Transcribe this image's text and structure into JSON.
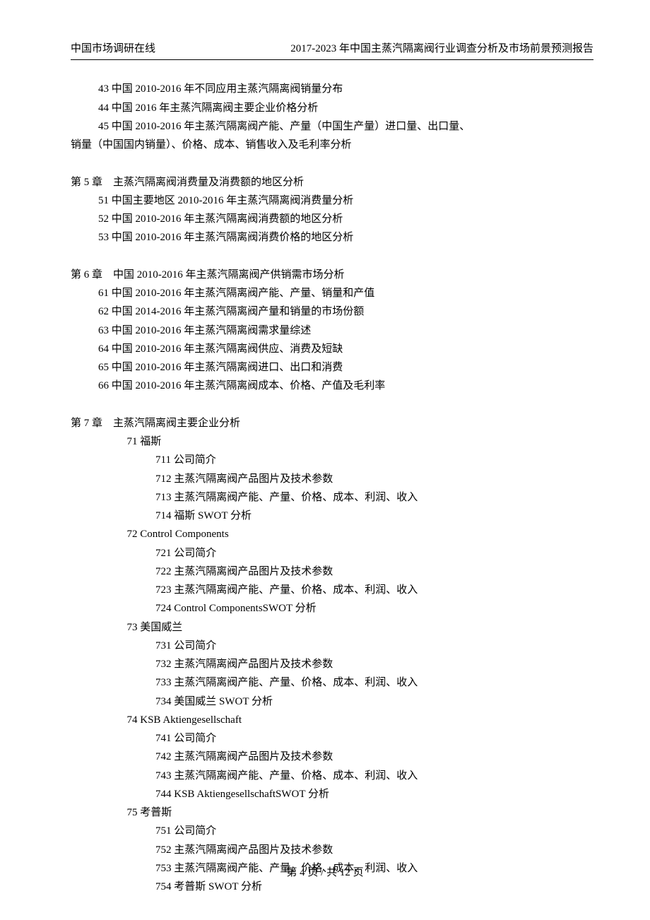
{
  "header": {
    "left": "中国市场调研在线",
    "right": "2017-2023 年中国主蒸汽隔离阀行业调查分析及市场前景预测报告"
  },
  "pre": {
    "l1": "43 中国 2010-2016 年不同应用主蒸汽隔离阀销量分布",
    "l2": "44 中国 2016 年主蒸汽隔离阀主要企业价格分析",
    "l3": "45 中国 2010-2016 年主蒸汽隔离阀产能、产量（中国生产量）进口量、出口量、",
    "l3b": "销量（中国国内销量）、价格、成本、销售收入及毛利率分析"
  },
  "ch5": {
    "title": "第 5 章    主蒸汽隔离阀消费量及消费额的地区分析",
    "s1": "51 中国主要地区 2010-2016 年主蒸汽隔离阀消费量分析",
    "s2": "52 中国 2010-2016 年主蒸汽隔离阀消费额的地区分析",
    "s3": "53 中国 2010-2016 年主蒸汽隔离阀消费价格的地区分析"
  },
  "ch6": {
    "title": "第 6 章    中国 2010-2016 年主蒸汽隔离阀产供销需市场分析",
    "s1": "61 中国 2010-2016 年主蒸汽隔离阀产能、产量、销量和产值",
    "s2": "62 中国 2014-2016 年主蒸汽隔离阀产量和销量的市场份额",
    "s3": "63 中国 2010-2016 年主蒸汽隔离阀需求量综述",
    "s4": "64 中国 2010-2016 年主蒸汽隔离阀供应、消费及短缺",
    "s5": "65 中国 2010-2016 年主蒸汽隔离阀进口、出口和消费",
    "s6": "66 中国 2010-2016 年主蒸汽隔离阀成本、价格、产值及毛利率"
  },
  "ch7": {
    "title": "第 7 章    主蒸汽隔离阀主要企业分析",
    "s71": {
      "h": "71 福斯",
      "a": "711 公司简介",
      "b": "712 主蒸汽隔离阀产品图片及技术参数",
      "c": "713 主蒸汽隔离阀产能、产量、价格、成本、利润、收入",
      "d": "714 福斯 SWOT 分析"
    },
    "s72": {
      "h": "72 Control Components",
      "a": "721 公司简介",
      "b": "722 主蒸汽隔离阀产品图片及技术参数",
      "c": "723 主蒸汽隔离阀产能、产量、价格、成本、利润、收入",
      "d": "724 Control ComponentsSWOT 分析"
    },
    "s73": {
      "h": "73 美国威兰",
      "a": "731 公司简介",
      "b": "732 主蒸汽隔离阀产品图片及技术参数",
      "c": "733 主蒸汽隔离阀产能、产量、价格、成本、利润、收入",
      "d": "734 美国威兰 SWOT 分析"
    },
    "s74": {
      "h": "74 KSB Aktiengesellschaft",
      "a": "741 公司简介",
      "b": "742 主蒸汽隔离阀产品图片及技术参数",
      "c": "743 主蒸汽隔离阀产能、产量、价格、成本、利润、收入",
      "d": "744 KSB AktiengesellschaftSWOT 分析"
    },
    "s75": {
      "h": "75 考普斯",
      "a": "751 公司简介",
      "b": "752 主蒸汽隔离阀产品图片及技术参数",
      "c": "753 主蒸汽隔离阀产能、产量、价格、成本、利润、收入",
      "d": "754 考普斯 SWOT 分析"
    }
  },
  "footer": "第 4 页 / 共 12 页"
}
